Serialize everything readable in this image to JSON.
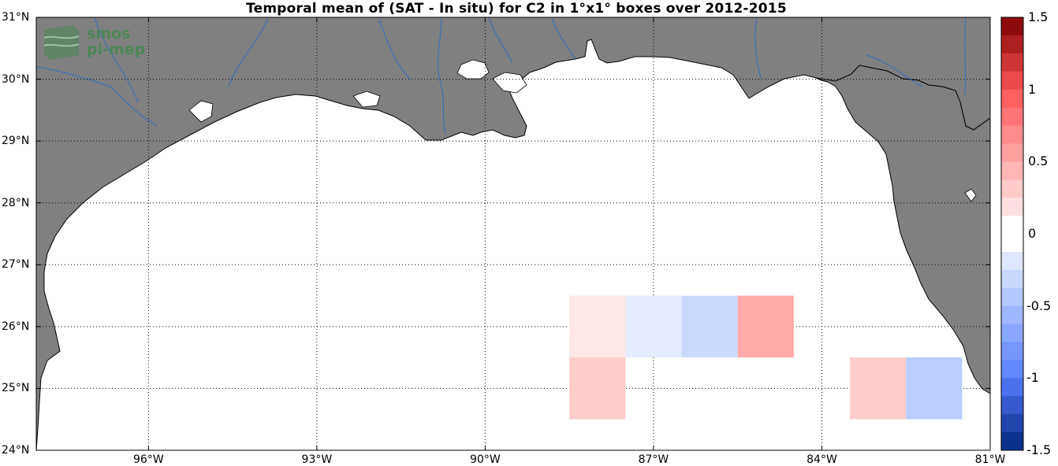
{
  "title": "Temporal mean of (SAT - In situ) for C2 in 1°x1° boxes over 2012-2015",
  "logo": {
    "line1": "smos",
    "line2": "pi-mep"
  },
  "axes": {
    "lat_labels": [
      "31°N",
      "30°N",
      "29°N",
      "28°N",
      "27°N",
      "26°N",
      "25°N",
      "24°N"
    ],
    "lon_labels": [
      "96°W",
      "93°W",
      "90°W",
      "87°W",
      "84°W",
      "81°W"
    ],
    "lat_range": [
      24,
      31
    ],
    "lon_range": [
      -98,
      -81
    ],
    "grid": "dotted"
  },
  "colorbar": {
    "labels": [
      "1.5",
      "1",
      "0.5",
      "0",
      "-0.5",
      "-1",
      "-1.5"
    ],
    "range": [
      -1.5,
      1.5
    ]
  },
  "colors": {
    "land": "#808080",
    "ocean": "#ffffff",
    "rivers": "#2f6fc0"
  },
  "chart_data": {
    "type": "heatmap",
    "title": "Temporal mean of (SAT - In situ) for C2 in 1°x1° boxes over 2012-2015",
    "value_range": [
      -1.5,
      1.5
    ],
    "cells": [
      {
        "lon": -88,
        "lat": 26,
        "value": 0.15
      },
      {
        "lon": -87,
        "lat": 26,
        "value": -0.15
      },
      {
        "lon": -86,
        "lat": 26,
        "value": -0.3
      },
      {
        "lon": -85,
        "lat": 26,
        "value": 0.5
      },
      {
        "lon": -88,
        "lat": 25,
        "value": 0.3
      },
      {
        "lon": -83,
        "lat": 25,
        "value": 0.3
      },
      {
        "lon": -82,
        "lat": 25,
        "value": -0.4
      }
    ]
  }
}
